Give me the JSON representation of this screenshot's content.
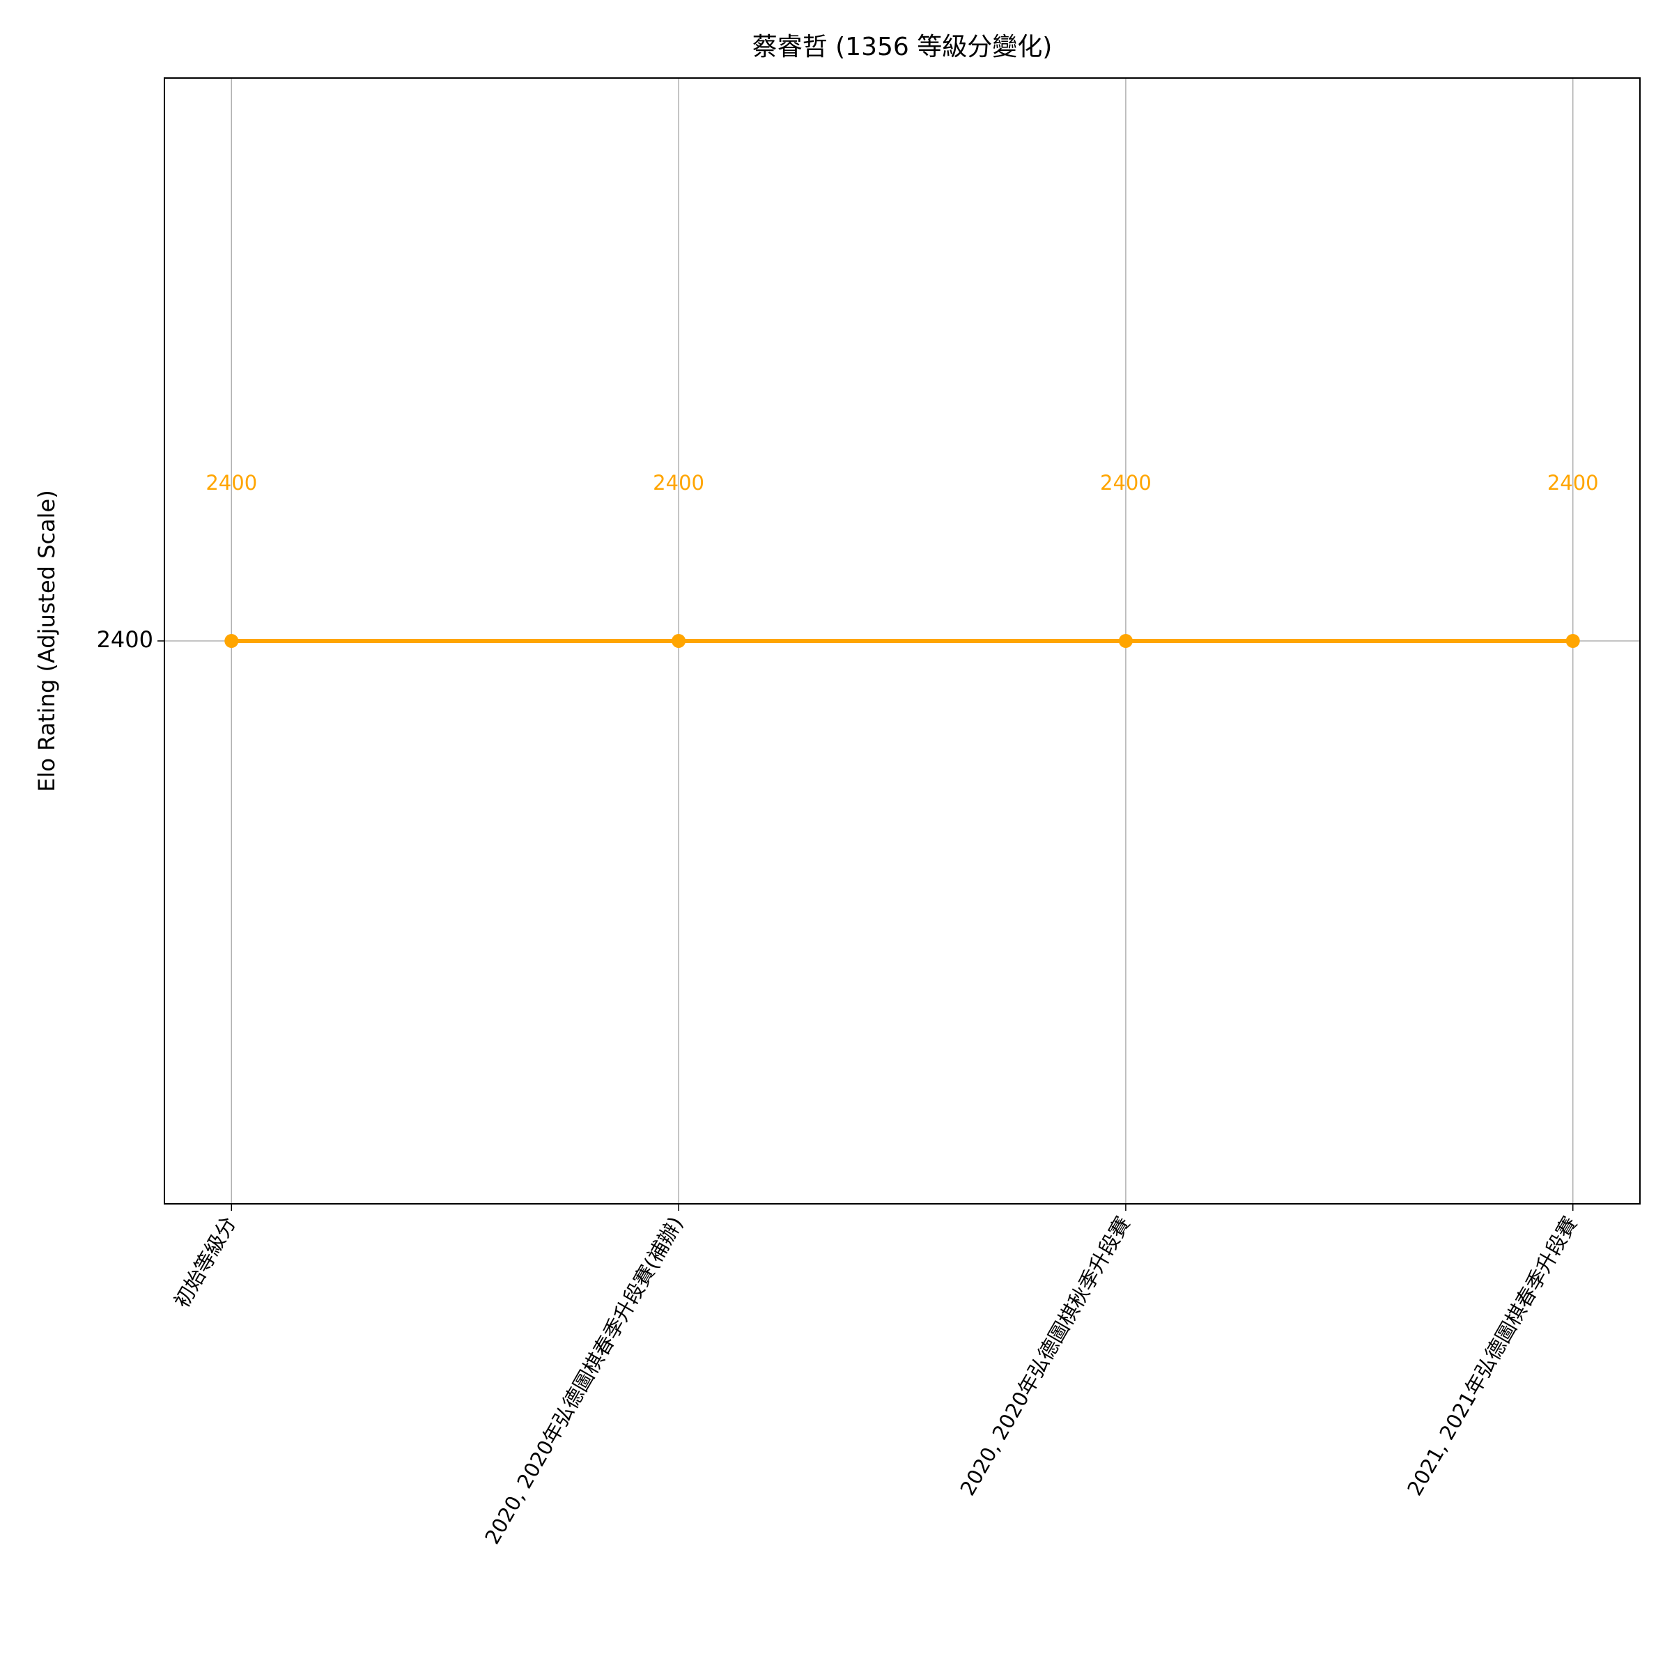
{
  "chart_data": {
    "type": "line",
    "title": "蔡睿哲 (1356 等級分變化)",
    "ylabel": "Elo Rating (Adjusted Scale)",
    "categories": [
      "初始等級分",
      "2020, 2020年弘德圖棋春季升段賽(補辦)",
      "2020, 2020年弘德圖棋秋季升段賽",
      "2021, 2021年弘德圖棋春季升段賽"
    ],
    "values": [
      2400,
      2400,
      2400,
      2400
    ],
    "color": "#ffa500",
    "ylim": [
      2300,
      2500
    ],
    "yticks": [
      2400
    ],
    "grid": true
  }
}
